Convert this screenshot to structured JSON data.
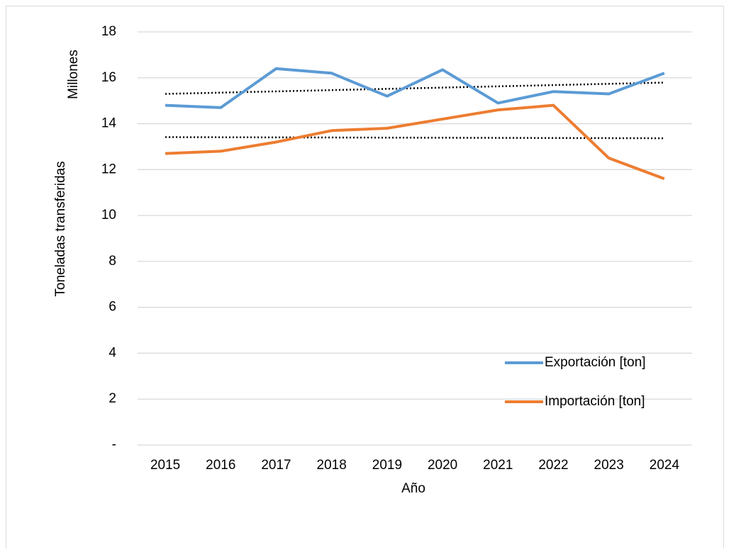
{
  "chart_data": {
    "type": "line",
    "y_label": "Toneladas transferidas",
    "y_unit_label": "Millones",
    "x_label": "Año",
    "categories": [
      "2015",
      "2016",
      "2017",
      "2018",
      "2019",
      "2020",
      "2021",
      "2022",
      "2023",
      "2024"
    ],
    "series": [
      {
        "name": "Exportación [ton]",
        "color": "#5b9bd5",
        "values": [
          14.8,
          14.7,
          16.4,
          16.2,
          15.2,
          16.35,
          14.9,
          15.4,
          15.3,
          16.2
        ]
      },
      {
        "name": "Importación [ton]",
        "color": "#ed7d31",
        "values": [
          12.7,
          12.8,
          13.2,
          13.7,
          13.8,
          14.2,
          14.6,
          14.8,
          12.5,
          11.6
        ]
      }
    ],
    "ylim": [
      0,
      18
    ],
    "yticks": [
      {
        "value": 0,
        "label": "-"
      },
      2,
      4,
      6,
      8,
      10,
      12,
      14,
      16,
      18
    ],
    "grid": true,
    "trendline": true,
    "legend": "lower right"
  }
}
